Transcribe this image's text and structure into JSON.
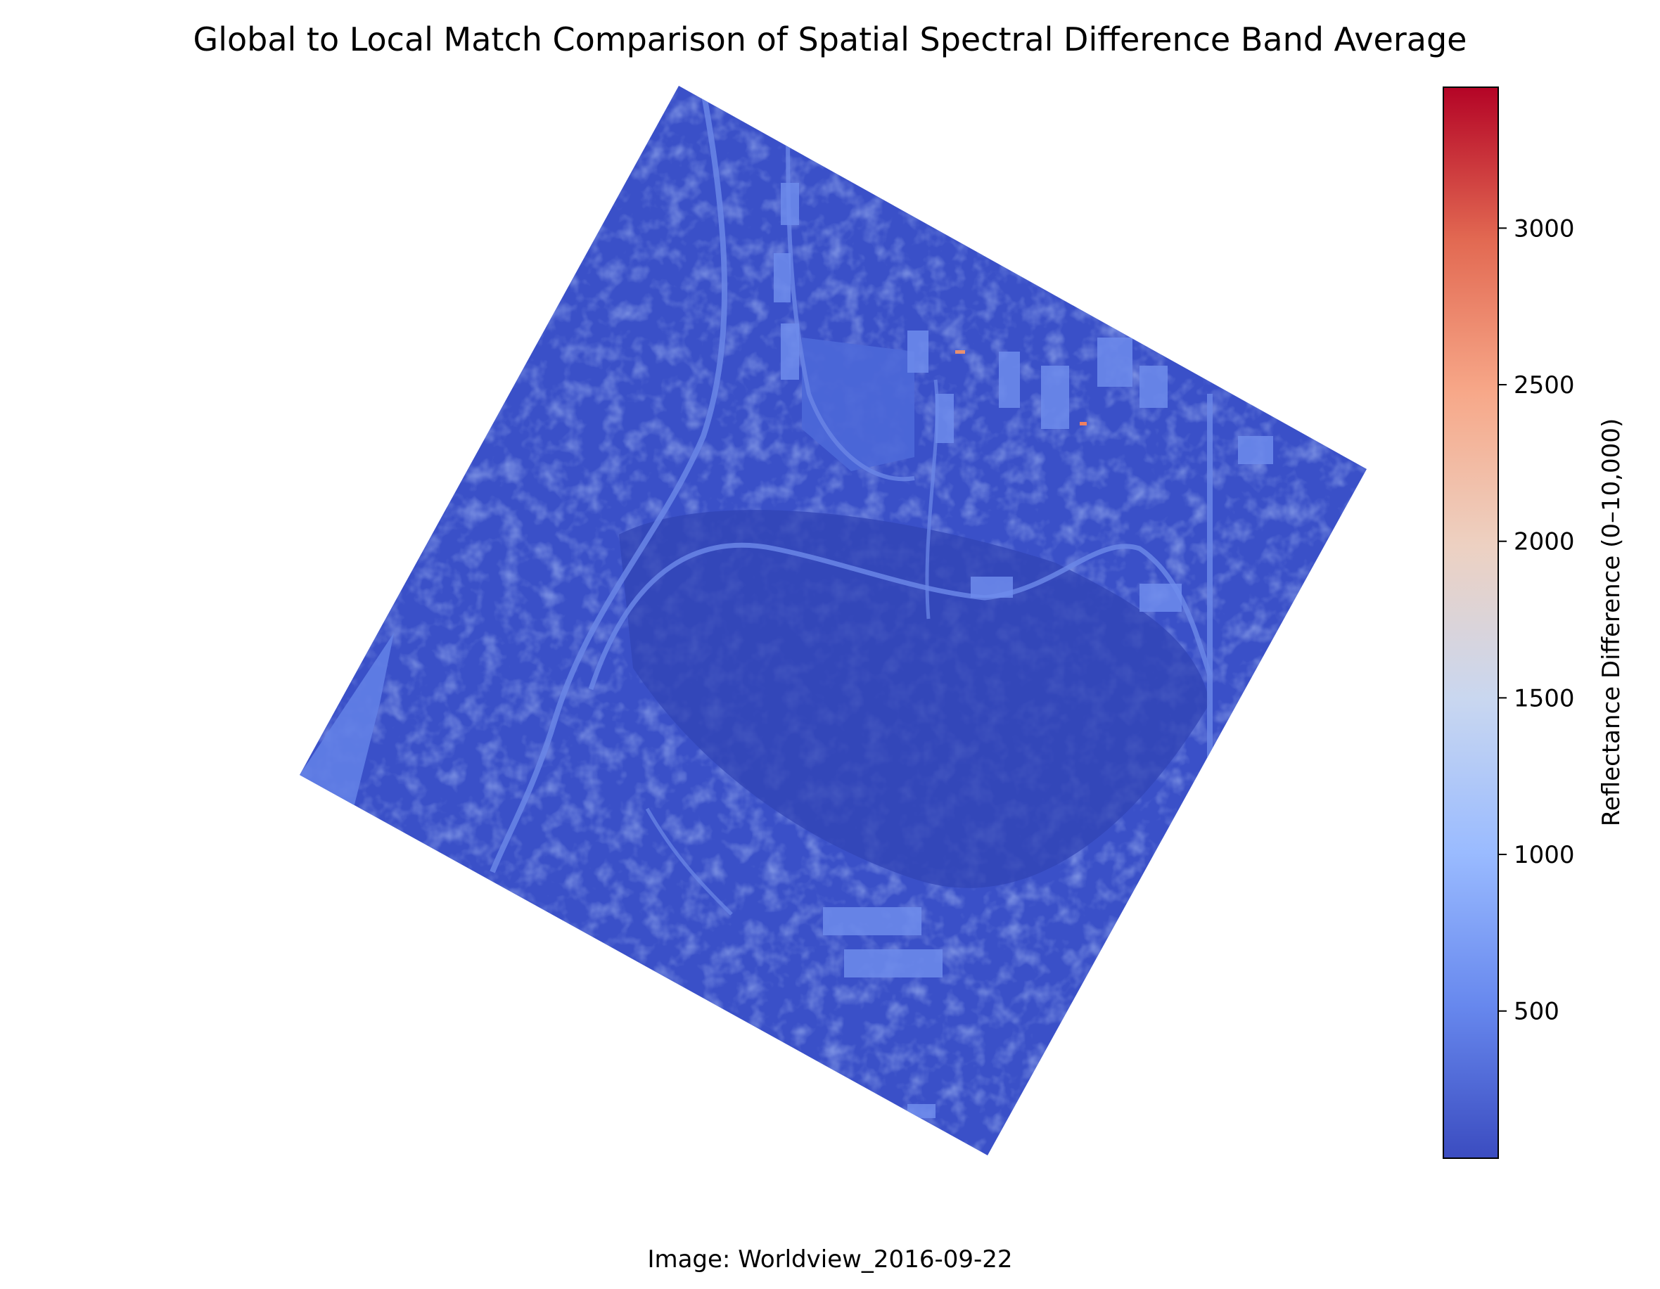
{
  "chart_data": {
    "type": "heatmap",
    "title": "Global to Local Match Comparison of Spatial Spectral Difference Band Average",
    "caption": "Image: Worldview_2016-09-22",
    "colorbar": {
      "label": "Reflectance Difference (0–10,000)",
      "colormap": "coolwarm",
      "range": [
        30,
        3450
      ],
      "ticks": [
        500,
        1000,
        1500,
        2000,
        2500,
        3000
      ],
      "tick_labels": [
        "500",
        "1000",
        "1500",
        "2000",
        "2500",
        "3000"
      ],
      "colors": [
        "#3b4cc0",
        "#6788ee",
        "#9abbff",
        "#c9d7f0",
        "#edd1c2",
        "#f7a889",
        "#e26952",
        "#b40426"
      ]
    },
    "image": {
      "description_colors": {
        "background_low": "#3a50c8",
        "forest_dark": "#3344b8",
        "roads_light": "#6a86e6",
        "fields": "#4a66d8",
        "hotspot": "#f08060"
      },
      "typical_value_range": [
        50,
        800
      ],
      "max_visible_value": 3000
    }
  }
}
